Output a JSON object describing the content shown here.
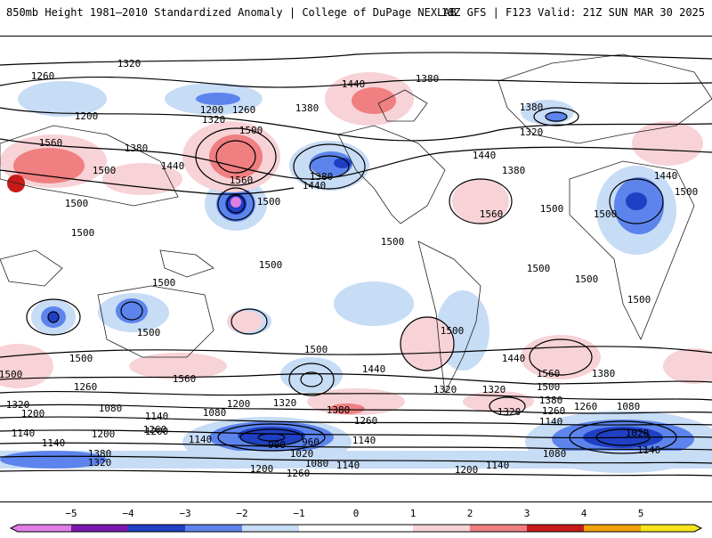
{
  "header": {
    "title_left": "850mb Height 1981–2010 Standardized Anomaly | College of DuPage NEXLAB",
    "title_right": "18Z GFS | F123 Valid: 21Z SUN MAR 30 2025"
  },
  "colors": {
    "neg5": "#e07ee6",
    "neg4": "#7a18b0",
    "neg3": "#1f3fc4",
    "neg2": "#5c84ec",
    "neg1": "#c7dcf5",
    "pos1": "#f7d2d6",
    "pos2": "#ef7f80",
    "pos3": "#c81a1a",
    "pos4": "#f2a20a",
    "pos5": "#f7e51c"
  },
  "contour_labels": [
    {
      "text": "1320"
    },
    {
      "text": "1260"
    },
    {
      "text": "1200"
    },
    {
      "text": "1200"
    },
    {
      "text": "1320"
    },
    {
      "text": "1260"
    },
    {
      "text": "1380"
    },
    {
      "text": "1440"
    },
    {
      "text": "1380"
    },
    {
      "text": "1380"
    },
    {
      "text": "1320"
    },
    {
      "text": "1560"
    },
    {
      "text": "1380"
    },
    {
      "text": "1500"
    },
    {
      "text": "1500"
    },
    {
      "text": "1440"
    },
    {
      "text": "1560"
    },
    {
      "text": "1380"
    },
    {
      "text": "1440"
    },
    {
      "text": "1500"
    },
    {
      "text": "1500"
    },
    {
      "text": "1500"
    },
    {
      "text": "1440"
    },
    {
      "text": "1380"
    },
    {
      "text": "1440"
    },
    {
      "text": "1500"
    },
    {
      "text": "1560"
    },
    {
      "text": "1500"
    },
    {
      "text": "1500"
    },
    {
      "text": "1500"
    },
    {
      "text": "1500"
    },
    {
      "text": "1500"
    },
    {
      "text": "1500"
    },
    {
      "text": "1500"
    },
    {
      "text": "1500"
    },
    {
      "text": "1500"
    },
    {
      "text": "1500"
    },
    {
      "text": "1500"
    },
    {
      "text": "1440"
    },
    {
      "text": "1560"
    },
    {
      "text": "1500"
    },
    {
      "text": "1500"
    },
    {
      "text": "1440"
    },
    {
      "text": "1560"
    },
    {
      "text": "1500"
    },
    {
      "text": "1380"
    },
    {
      "text": "1320"
    },
    {
      "text": "1260"
    },
    {
      "text": "1320"
    },
    {
      "text": "1200"
    },
    {
      "text": "1080"
    },
    {
      "text": "1140"
    },
    {
      "text": "1080"
    },
    {
      "text": "1200"
    },
    {
      "text": "1320"
    },
    {
      "text": "1380"
    },
    {
      "text": "1260"
    },
    {
      "text": "1320"
    },
    {
      "text": "1260"
    },
    {
      "text": "1380"
    },
    {
      "text": "1320"
    },
    {
      "text": "1140"
    },
    {
      "text": "1080"
    },
    {
      "text": "1020"
    },
    {
      "text": "1140"
    },
    {
      "text": "1200"
    },
    {
      "text": "1140"
    },
    {
      "text": "1200"
    },
    {
      "text": "1380"
    },
    {
      "text": "1320"
    },
    {
      "text": "1260"
    },
    {
      "text": "1140"
    },
    {
      "text": "900"
    },
    {
      "text": "960"
    },
    {
      "text": "1020"
    },
    {
      "text": "1140"
    },
    {
      "text": "1080"
    },
    {
      "text": "1200"
    },
    {
      "text": "1260"
    },
    {
      "text": "1140"
    },
    {
      "text": "1200"
    },
    {
      "text": "1080"
    },
    {
      "text": "1140"
    },
    {
      "text": "1260"
    },
    {
      "text": "1140"
    }
  ],
  "colorbar": {
    "ticks": [
      {
        "label": "−5",
        "value": -5
      },
      {
        "label": "−4",
        "value": -4
      },
      {
        "label": "−3",
        "value": -3
      },
      {
        "label": "−2",
        "value": -2
      },
      {
        "label": "−1",
        "value": -1
      },
      {
        "label": "0",
        "value": 0
      },
      {
        "label": "1",
        "value": 1
      },
      {
        "label": "2",
        "value": 2
      },
      {
        "label": "3",
        "value": 3
      },
      {
        "label": "4",
        "value": 4
      },
      {
        "label": "5",
        "value": 5
      }
    ]
  }
}
